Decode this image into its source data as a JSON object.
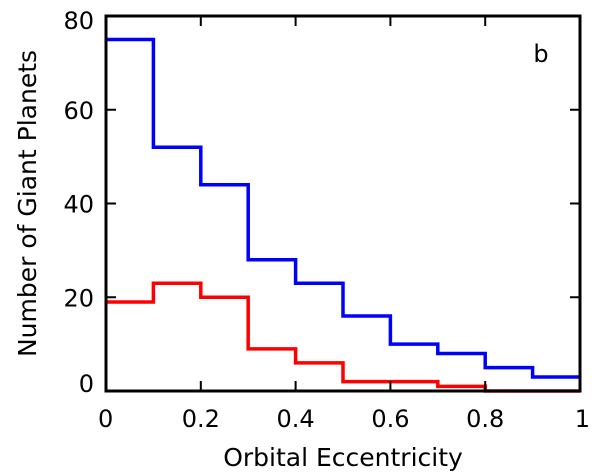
{
  "chart_data": {
    "type": "line",
    "step": "post",
    "panel_label": "b",
    "xlabel": "Orbital Eccentricity",
    "ylabel": "Number of Giant Planets",
    "xlim": [
      0,
      1
    ],
    "ylim": [
      0,
      80
    ],
    "x_ticks": [
      0,
      0.2,
      0.4,
      0.6,
      0.8,
      1
    ],
    "x_tick_labels": [
      "0",
      "0.2",
      "0.4",
      "0.6",
      "0.8",
      "1"
    ],
    "y_ticks": [
      0,
      20,
      40,
      60,
      80
    ],
    "y_tick_labels": [
      "0",
      "20",
      "40",
      "60",
      "80"
    ],
    "bin_edges": [
      0,
      0.1,
      0.2,
      0.3,
      0.4,
      0.5,
      0.6,
      0.7,
      0.8,
      0.9,
      1.0
    ],
    "series": [
      {
        "color": "#0000ff",
        "values": [
          75,
          52,
          44,
          28,
          23,
          16,
          10,
          8,
          5,
          3
        ]
      },
      {
        "color": "#ff0000",
        "values": [
          19,
          23,
          20,
          9,
          6,
          2,
          2,
          1,
          0,
          0
        ]
      }
    ],
    "grid": false,
    "legend": false
  }
}
